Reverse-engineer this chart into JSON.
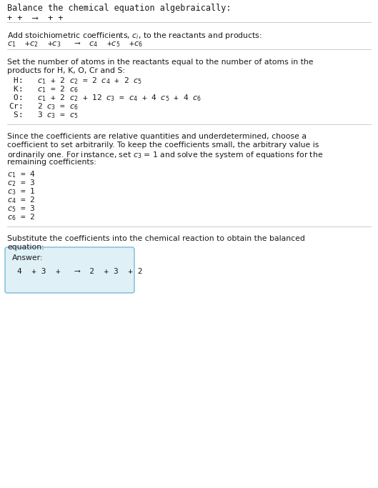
{
  "title": "Balance the chemical equation algebraically:",
  "line1": "+ +  ⟶  + +",
  "section2_intro": "Add stoichiometric coefficients, $c_i$, to the reactants and products:",
  "section2_eq": "$c_1$  +$c_2$  +$c_3$   ⟶  $c_4$  +$c_5$  +$c_6$",
  "section3_line1": "Set the number of atoms in the reactants equal to the number of atoms in the",
  "section3_line2": "products for H, K, O, Cr and S:",
  "section3_eqs": [
    " H:   $c_1$ + 2 $c_2$ = 2 $c_4$ + 2 $c_5$",
    " K:   $c_1$ = 2 $c_6$",
    " O:   $c_1$ + 2 $c_2$ + 12 $c_3$ = $c_4$ + 4 $c_5$ + 4 $c_6$",
    "Cr:   2 $c_3$ = $c_6$",
    " S:   3 $c_3$ = $c_5$"
  ],
  "section4_lines": [
    "Since the coefficients are relative quantities and underdetermined, choose a",
    "coefficient to set arbitrarily. To keep the coefficients small, the arbitrary value is",
    "ordinarily one. For instance, set $c_3$ = 1 and solve the system of equations for the",
    "remaining coefficients:"
  ],
  "coeff_lines": [
    "$c_1$ = 4",
    "$c_2$ = 3",
    "$c_3$ = 1",
    "$c_4$ = 2",
    "$c_5$ = 3",
    "$c_6$ = 2"
  ],
  "section5_line1": "Substitute the coefficients into the chemical reaction to obtain the balanced",
  "section5_line2": "equation:",
  "answer_label": "Answer:",
  "answer_eq": "4  + 3  +   ⟶  2  + 3  + 2",
  "bg_color": "#ffffff",
  "text_color": "#1a1a1a",
  "answer_box_bg": "#dff0f7",
  "answer_box_edge": "#7abbd4",
  "sep_color": "#cccccc"
}
